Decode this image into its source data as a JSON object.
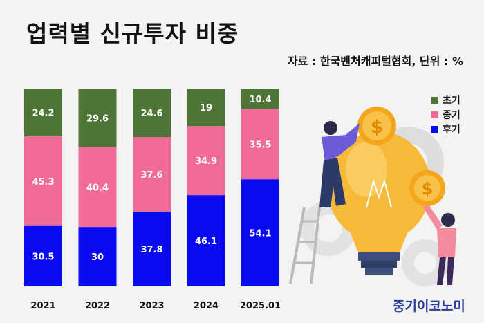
{
  "title": "업력별 신규투자 비중",
  "source": "자료 : 한국벤처캐피털협회, 단위 : %",
  "brand": "중기이코노미",
  "colors": {
    "초기": "#4e7536",
    "중기": "#f06b98",
    "후기": "#0a0af0",
    "label_dark": "#ffffff",
    "illustration_bulb": "#f6b93a",
    "illustration_gear": "#d8d8d8",
    "illustration_coin": "#f3a51c"
  },
  "chart_data": {
    "type": "bar",
    "stacked": true,
    "categories": [
      "2021",
      "2022",
      "2023",
      "2024",
      "2025.01"
    ],
    "series": [
      {
        "name": "초기",
        "values": [
          24.2,
          29.6,
          24.6,
          19,
          10.4
        ]
      },
      {
        "name": "중기",
        "values": [
          45.3,
          40.4,
          37.6,
          34.9,
          35.5
        ]
      },
      {
        "name": "후기",
        "values": [
          30.5,
          30,
          37.8,
          46.1,
          54.1
        ]
      }
    ],
    "legend_position": "right",
    "grid": false
  }
}
